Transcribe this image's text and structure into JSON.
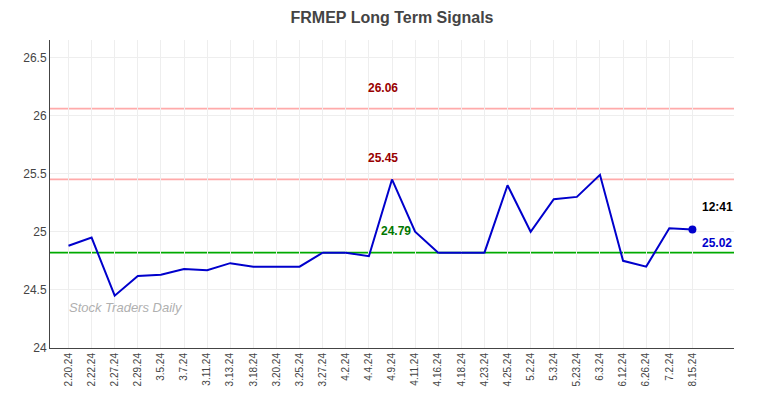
{
  "chart_data": {
    "type": "line",
    "title": "FRMEP Long Term Signals",
    "categories": [
      "2.20.24",
      "2.22.24",
      "2.27.24",
      "2.29.24",
      "3.5.24",
      "3.7.24",
      "3.11.24",
      "3.13.24",
      "3.18.24",
      "3.20.24",
      "3.25.24",
      "3.27.24",
      "4.2.24",
      "4.4.24",
      "4.9.24",
      "4.11.24",
      "4.16.24",
      "4.18.24",
      "4.23.24",
      "4.25.24",
      "5.2.24",
      "5.3.24",
      "5.23.24",
      "6.3.24",
      "6.12.24",
      "6.26.24",
      "7.2.24",
      "8.15.24"
    ],
    "values": [
      24.88,
      24.95,
      24.45,
      24.62,
      24.63,
      24.68,
      24.67,
      24.73,
      24.7,
      24.7,
      24.7,
      24.82,
      24.82,
      24.79,
      25.45,
      25.0,
      24.82,
      24.82,
      24.82,
      25.4,
      25.0,
      25.28,
      25.3,
      25.49,
      24.75,
      24.7,
      25.03,
      25.02
    ],
    "color": "#0000cc",
    "ylim": [
      24.0,
      26.65
    ],
    "yticks": [
      24,
      24.5,
      25,
      25.5,
      26,
      26.5
    ],
    "grid": true,
    "hlines": [
      {
        "value": 24.82,
        "color": "#00aa00"
      },
      {
        "value": 25.45,
        "color": "#ffaaaa"
      },
      {
        "value": 26.06,
        "color": "#ffaaaa"
      }
    ],
    "annotations": [
      {
        "text": "24.79",
        "x": "4.4.24",
        "y": 24.79,
        "color": "#007700"
      },
      {
        "text": "25.45",
        "x": "4.9.24",
        "y": 25.45,
        "color": "#990000"
      },
      {
        "text": "26.06",
        "x": "4.9.24",
        "y": 26.06,
        "color": "#990000"
      },
      {
        "text": "12:41",
        "x": "8.15.24",
        "y": 25.02,
        "color": "#000000"
      },
      {
        "text": "25.02",
        "x": "8.15.24",
        "y": 25.02,
        "color": "#0000cc",
        "marker": "circle"
      }
    ],
    "watermark": "Stock Traders Daily"
  }
}
